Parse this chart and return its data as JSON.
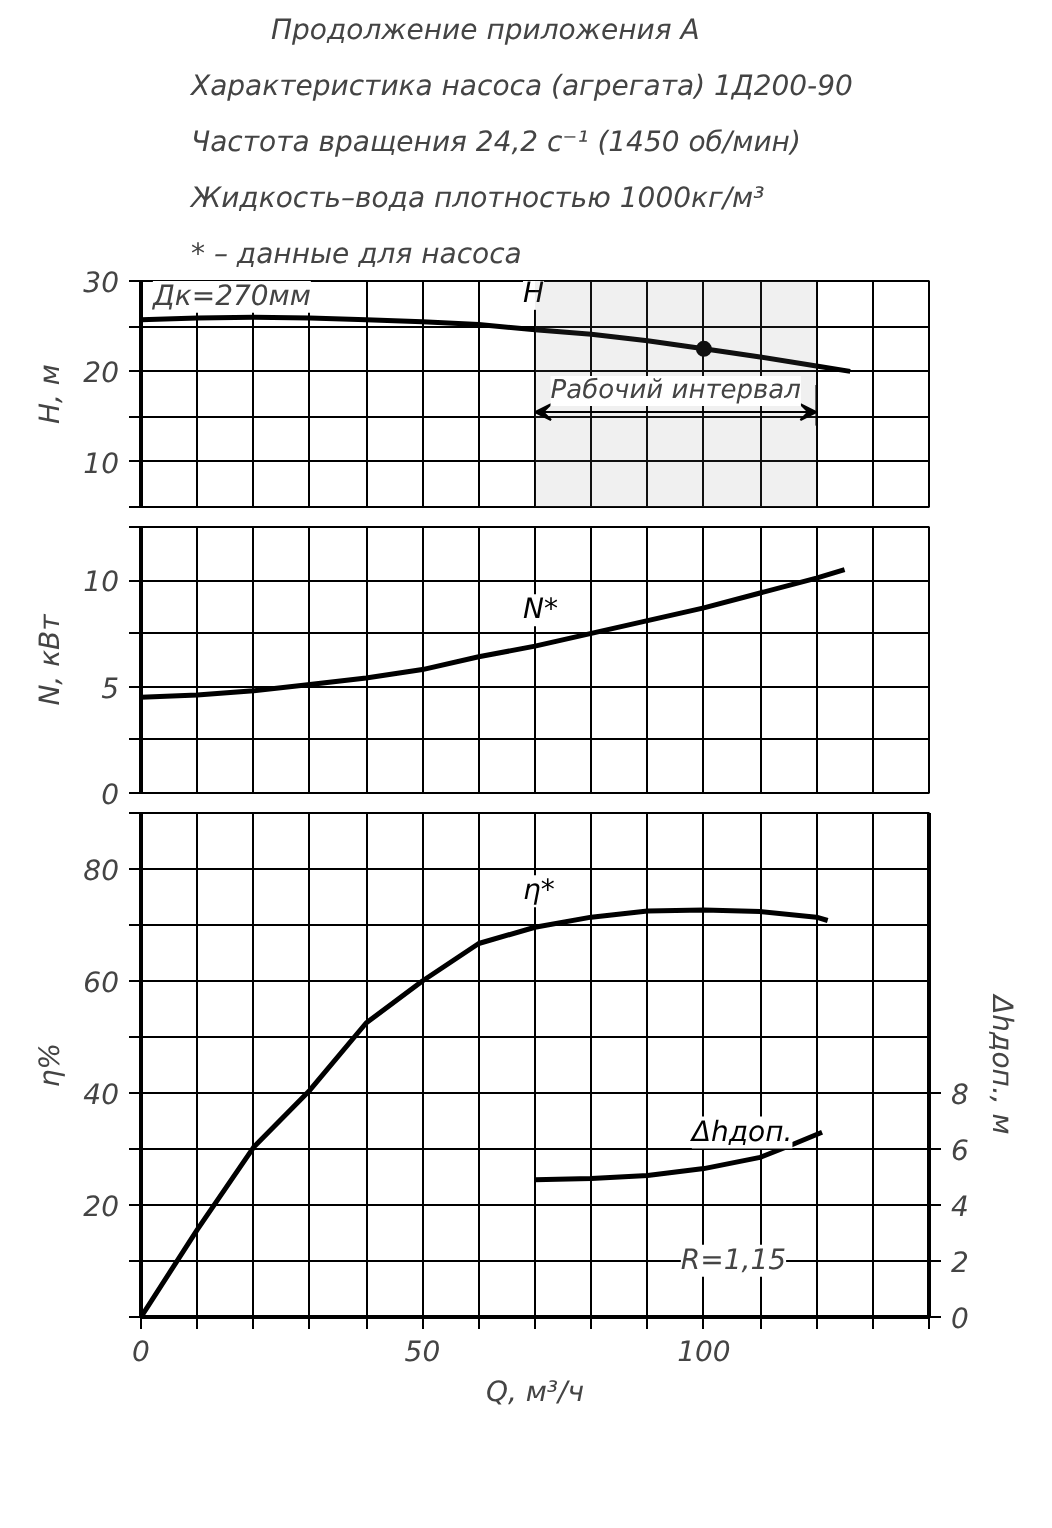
{
  "chart_data": [
    {
      "type": "line",
      "title": "Характеристика насоса (агрегата) 1Д200-90",
      "subtitle": "Частота вращения 24,2 с⁻¹ (1450 об/мин)",
      "annotations": [
        "Продолжение приложения А",
        "Жидкость–вода плотностью 1000кг/м³",
        "* – данные для насоса",
        "Дк=270мм"
      ],
      "ylabel": "H, м",
      "xlim": [
        0,
        140
      ],
      "xticks": [
        0,
        {
          "value": 10,
          "label": null
        },
        {
          "value": 20,
          "label": null
        },
        {
          "value": 30,
          "label": null
        },
        {
          "value": 40,
          "label": null
        },
        50,
        {
          "value": 60,
          "label": null
        },
        {
          "value": 70,
          "label": null
        },
        {
          "value": 80,
          "label": null
        },
        {
          "value": 90,
          "label": null
        },
        100,
        {
          "value": 110,
          "label": null
        },
        {
          "value": 120,
          "label": null
        },
        {
          "value": 130,
          "label": null
        },
        {
          "value": 140,
          "label": null
        }
      ],
      "ylim": [
        5,
        30
      ],
      "yticks": [
        {
          "value": 5,
          "label": null
        },
        10,
        {
          "value": 15,
          "label": null
        },
        20,
        {
          "value": 25,
          "label": null
        },
        30
      ],
      "grid": true,
      "tick_labels": "y",
      "line_style": "solid",
      "bands": [
        {
          "axis": "x",
          "from": 70,
          "to": 120,
          "label": "Рабочий интервал"
        }
      ],
      "series": [
        {
          "name": "H",
          "color": "#000000",
          "x": [
            0,
            10,
            20,
            30,
            40,
            50,
            60,
            70,
            80,
            90,
            100,
            110,
            120,
            126
          ],
          "values": [
            25.7,
            25.9,
            26.0,
            25.9,
            25.7,
            25.5,
            25.2,
            24.6,
            24.1,
            23.4,
            22.5,
            21.6,
            20.6,
            20.0
          ]
        },
        {
          "type": "scatter",
          "marker": "circle",
          "color": "#000000",
          "x": [
            100
          ],
          "values": [
            22.5
          ]
        }
      ]
    },
    {
      "type": "line",
      "ylabel": "N, кВт",
      "xlim": [
        0,
        140
      ],
      "xticks": [
        0,
        {
          "value": 10,
          "label": null
        },
        {
          "value": 20,
          "label": null
        },
        {
          "value": 30,
          "label": null
        },
        {
          "value": 40,
          "label": null
        },
        50,
        {
          "value": 60,
          "label": null
        },
        {
          "value": 70,
          "label": null
        },
        {
          "value": 80,
          "label": null
        },
        {
          "value": 90,
          "label": null
        },
        100,
        {
          "value": 110,
          "label": null
        },
        {
          "value": 120,
          "label": null
        },
        {
          "value": 130,
          "label": null
        },
        {
          "value": 140,
          "label": null
        }
      ],
      "ylim": [
        0,
        12.5
      ],
      "yticks": [
        0,
        {
          "value": 2.5,
          "label": null
        },
        5,
        {
          "value": 7.5,
          "label": null
        },
        10,
        {
          "value": 12.5,
          "label": null
        }
      ],
      "grid": true,
      "tick_labels": "y",
      "line_style": "solid",
      "series": [
        {
          "name": "N*",
          "color": "#000000",
          "x": [
            0,
            10,
            20,
            30,
            40,
            50,
            60,
            70,
            80,
            90,
            100,
            110,
            120,
            125
          ],
          "values": [
            4.5,
            4.6,
            4.8,
            5.1,
            5.4,
            5.8,
            6.4,
            6.9,
            7.5,
            8.1,
            8.7,
            9.4,
            10.1,
            10.5
          ]
        }
      ]
    },
    {
      "type": "line",
      "ylabel": "η%",
      "xlabel": "Q, м³/ч",
      "y2label": "Δhдоп., м",
      "xlim": [
        0,
        140
      ],
      "xticks": [
        0,
        {
          "value": 10,
          "label": null
        },
        {
          "value": 20,
          "label": null
        },
        {
          "value": 30,
          "label": null
        },
        {
          "value": 40,
          "label": null
        },
        50,
        {
          "value": 60,
          "label": null
        },
        {
          "value": 70,
          "label": null
        },
        {
          "value": 80,
          "label": null
        },
        {
          "value": 90,
          "label": null
        },
        100,
        {
          "value": 110,
          "label": null
        },
        {
          "value": 120,
          "label": null
        },
        {
          "value": 130,
          "label": null
        },
        {
          "value": 140,
          "label": null
        }
      ],
      "ylim": [
        0,
        90
      ],
      "yticks": [
        {
          "value": 0,
          "label": null
        },
        {
          "value": 10,
          "label": null
        },
        20,
        {
          "value": 30,
          "label": null
        },
        40,
        {
          "value": 50,
          "label": null
        },
        60,
        {
          "value": 70,
          "label": null
        },
        80,
        {
          "value": 90,
          "label": null
        }
      ],
      "y2lim": [
        0,
        18
      ],
      "y2ticks": [
        0,
        2,
        4,
        6,
        8
      ],
      "grid": true,
      "line_style": "solid",
      "annotations": [
        "R=1,15"
      ],
      "series": [
        {
          "name": "η*",
          "color": "#000000",
          "x": [
            0,
            10,
            20,
            30,
            40,
            50,
            60,
            70,
            80,
            90,
            100,
            110,
            120,
            122
          ],
          "values": [
            0,
            15.6,
            30.3,
            40.5,
            52.5,
            60,
            66.7,
            69.6,
            71.4,
            72.5,
            72.7,
            72.4,
            71.4,
            70.8
          ]
        },
        {
          "name": "Δhдоп.",
          "axis": "y2",
          "color": "#000000",
          "x": [
            70,
            80,
            90,
            100,
            110,
            115,
            121
          ],
          "values": [
            4.9,
            4.95,
            5.05,
            5.3,
            5.7,
            6.1,
            6.6
          ]
        }
      ]
    }
  ]
}
